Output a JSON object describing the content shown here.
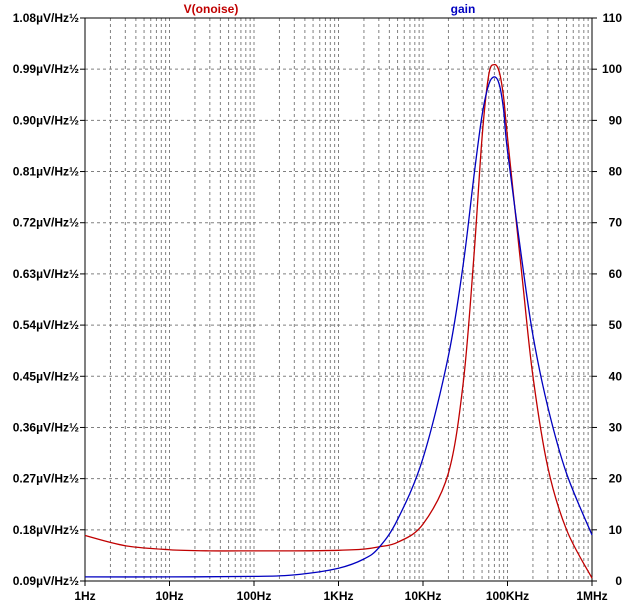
{
  "chart_data": {
    "type": "line",
    "xscale": "log",
    "xlim": [
      1,
      1000000
    ],
    "x_ticks": [
      {
        "value": 1,
        "label": "1Hz"
      },
      {
        "value": 10,
        "label": "10Hz"
      },
      {
        "value": 100,
        "label": "100Hz"
      },
      {
        "value": 1000,
        "label": "1KHz"
      },
      {
        "value": 10000,
        "label": "10KHz"
      },
      {
        "value": 100000,
        "label": "100KHz"
      },
      {
        "value": 1000000,
        "label": "1MHz"
      }
    ],
    "y_left": {
      "lim": [
        0.09,
        1.08
      ],
      "ticks": [
        {
          "value": 0.09,
          "label": "0.09µV/Hz½"
        },
        {
          "value": 0.18,
          "label": "0.18µV/Hz½"
        },
        {
          "value": 0.27,
          "label": "0.27µV/Hz½"
        },
        {
          "value": 0.36,
          "label": "0.36µV/Hz½"
        },
        {
          "value": 0.45,
          "label": "0.45µV/Hz½"
        },
        {
          "value": 0.54,
          "label": "0.54µV/Hz½"
        },
        {
          "value": 0.63,
          "label": "0.63µV/Hz½"
        },
        {
          "value": 0.72,
          "label": "0.72µV/Hz½"
        },
        {
          "value": 0.81,
          "label": "0.81µV/Hz½"
        },
        {
          "value": 0.9,
          "label": "0.90µV/Hz½"
        },
        {
          "value": 0.99,
          "label": "0.99µV/Hz½"
        },
        {
          "value": 1.08,
          "label": "1.08µV/Hz½"
        }
      ]
    },
    "y_right": {
      "lim": [
        0,
        110
      ],
      "ticks": [
        {
          "value": 0,
          "label": "0"
        },
        {
          "value": 10,
          "label": "10"
        },
        {
          "value": 20,
          "label": "20"
        },
        {
          "value": 30,
          "label": "30"
        },
        {
          "value": 40,
          "label": "40"
        },
        {
          "value": 50,
          "label": "50"
        },
        {
          "value": 60,
          "label": "60"
        },
        {
          "value": 70,
          "label": "70"
        },
        {
          "value": 80,
          "label": "80"
        },
        {
          "value": 90,
          "label": "90"
        },
        {
          "value": 100,
          "label": "100"
        },
        {
          "value": 110,
          "label": "110"
        }
      ]
    },
    "grid": true,
    "series": [
      {
        "name": "V(onoise)",
        "axis": "left",
        "color": "#c00000",
        "x": [
          1,
          3,
          10,
          30,
          100,
          300,
          1000,
          2000,
          3000,
          5000,
          10000,
          20000,
          30000,
          40000,
          50000,
          60000,
          70000,
          80000,
          90000,
          100000,
          150000,
          200000,
          300000,
          500000,
          1000000
        ],
        "y": [
          0.17,
          0.152,
          0.145,
          0.143,
          0.143,
          0.143,
          0.144,
          0.146,
          0.15,
          0.158,
          0.19,
          0.28,
          0.44,
          0.66,
          0.87,
          0.98,
          0.998,
          0.985,
          0.94,
          0.87,
          0.62,
          0.45,
          0.29,
          0.18,
          0.095
        ]
      },
      {
        "name": "gain",
        "axis": "right",
        "color": "#0000c0",
        "x": [
          1,
          10,
          100,
          300,
          1000,
          2000,
          3000,
          5000,
          10000,
          20000,
          30000,
          40000,
          50000,
          60000,
          70000,
          80000,
          90000,
          100000,
          150000,
          200000,
          300000,
          500000,
          1000000
        ],
        "y": [
          0.8,
          0.8,
          0.9,
          1.2,
          2.5,
          4.3,
          6.5,
          12,
          24,
          44,
          62,
          79,
          91,
          97,
          98.5,
          97,
          92,
          84,
          62,
          48,
          34,
          21,
          9
        ]
      }
    ]
  }
}
